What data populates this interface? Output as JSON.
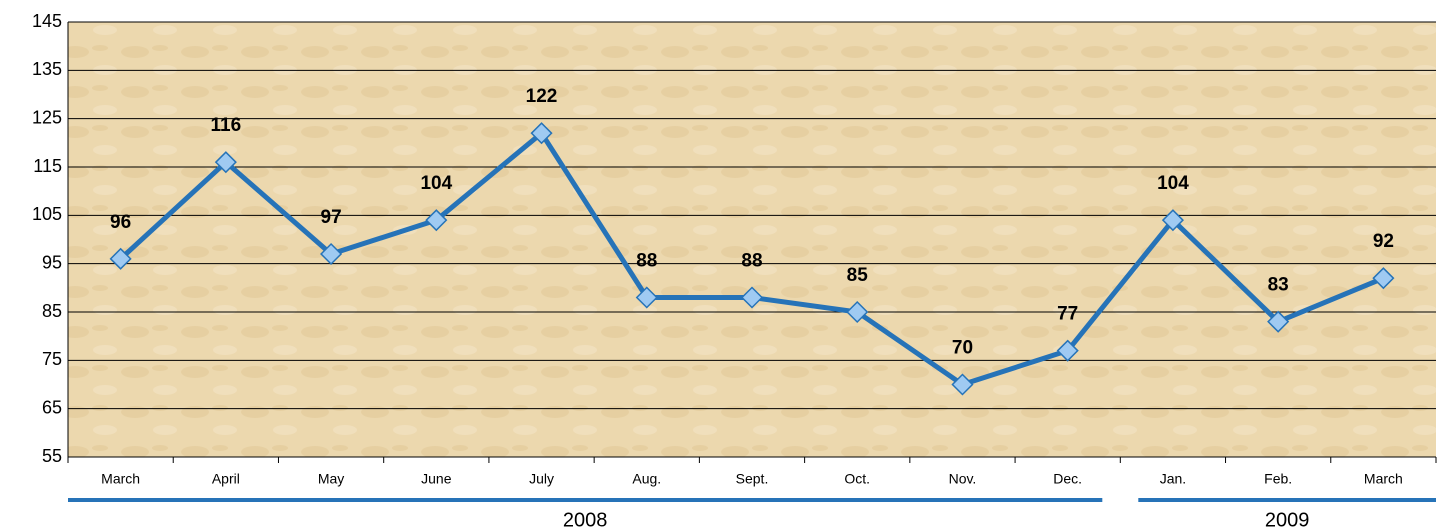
{
  "chart_data": {
    "type": "line",
    "categories": [
      "March",
      "April",
      "May",
      "June",
      "July",
      "Aug.",
      "Sept.",
      "Oct.",
      "Nov.",
      "Dec.",
      "Jan.",
      "Feb.",
      "March"
    ],
    "x_groups": [
      "2008",
      "2009"
    ],
    "series": [
      {
        "name": "Value",
        "color": "#2673b8",
        "marker_color": "#9fcaf2",
        "values": [
          96,
          116,
          97,
          104,
          122,
          88,
          88,
          85,
          70,
          77,
          104,
          83,
          92
        ]
      }
    ],
    "ylim": [
      55,
      145
    ],
    "yticks": [
      55,
      65,
      75,
      85,
      95,
      105,
      115,
      125,
      135,
      145
    ],
    "grid": true
  }
}
